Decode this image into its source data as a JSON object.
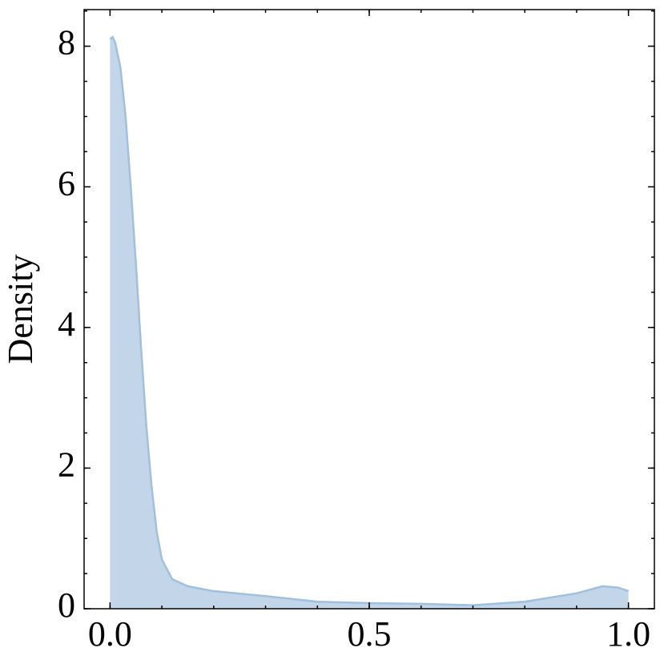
{
  "chart_data": {
    "type": "area",
    "ylabel": "Density",
    "x": [
      0.0,
      0.005,
      0.01,
      0.02,
      0.03,
      0.04,
      0.05,
      0.06,
      0.07,
      0.08,
      0.09,
      0.1,
      0.12,
      0.15,
      0.2,
      0.3,
      0.4,
      0.5,
      0.6,
      0.7,
      0.8,
      0.9,
      0.95,
      0.98,
      1.0
    ],
    "values": [
      8.1,
      8.13,
      8.05,
      7.7,
      7.0,
      6.0,
      4.9,
      3.7,
      2.6,
      1.75,
      1.1,
      0.7,
      0.42,
      0.32,
      0.25,
      0.18,
      0.1,
      0.08,
      0.07,
      0.05,
      0.1,
      0.22,
      0.32,
      0.3,
      0.25
    ],
    "color": "#c3d5e8",
    "edge_color": "#9fc0de",
    "xlim": [
      -0.05,
      1.05
    ],
    "ylim": [
      0,
      8.52
    ],
    "xticks": [
      {
        "value": 0,
        "label": "0.0"
      },
      {
        "value": 0.5,
        "label": "0.5"
      },
      {
        "value": 1,
        "label": "1.0"
      }
    ],
    "yticks": [
      0,
      2,
      4,
      6,
      8
    ],
    "xminor": 0.1,
    "yminor": 0.5
  }
}
